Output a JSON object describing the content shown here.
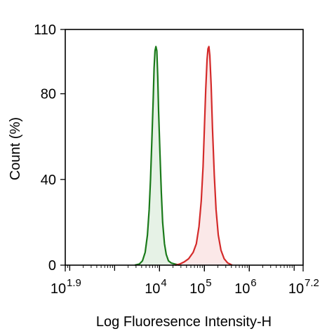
{
  "chart_data": {
    "type": "area",
    "xlabel": "Log Fluoresence Intensity-H",
    "ylabel": "Count  (%)",
    "x_scale": "log",
    "xlim": [
      1.9,
      7.2
    ],
    "ylim": [
      0,
      110
    ],
    "x_ticks": [
      {
        "base": "10",
        "exp": "1.9",
        "value": 1.9
      },
      {
        "base": "10",
        "exp": "4",
        "value": 4
      },
      {
        "base": "10",
        "exp": "5",
        "value": 5
      },
      {
        "base": "10",
        "exp": "6",
        "value": 6
      },
      {
        "base": "10",
        "exp": "7.2",
        "value": 7.2
      }
    ],
    "y_ticks": [
      "0",
      "40",
      "80",
      "110"
    ],
    "y_tick_values": [
      0,
      40,
      80,
      110
    ],
    "series": [
      {
        "color": "#1a7a1a",
        "fill": "#e6f2e6",
        "points": [
          [
            3.45,
            0
          ],
          [
            3.55,
            0.5
          ],
          [
            3.62,
            2
          ],
          [
            3.68,
            6
          ],
          [
            3.73,
            14
          ],
          [
            3.77,
            26
          ],
          [
            3.8,
            40
          ],
          [
            3.83,
            58
          ],
          [
            3.86,
            78
          ],
          [
            3.88,
            92
          ],
          [
            3.9,
            100
          ],
          [
            3.92,
            102
          ],
          [
            3.94,
            100
          ],
          [
            3.96,
            88
          ],
          [
            3.98,
            72
          ],
          [
            4.01,
            52
          ],
          [
            4.04,
            34
          ],
          [
            4.07,
            20
          ],
          [
            4.11,
            10
          ],
          [
            4.15,
            5
          ],
          [
            4.2,
            2
          ],
          [
            4.26,
            1
          ],
          [
            4.35,
            0.5
          ],
          [
            4.45,
            0
          ]
        ]
      },
      {
        "color": "#d42a2a",
        "fill": "#fbe8e8",
        "points": [
          [
            4.35,
            0
          ],
          [
            4.45,
            0.5
          ],
          [
            4.55,
            1.5
          ],
          [
            4.65,
            3
          ],
          [
            4.75,
            6
          ],
          [
            4.82,
            10
          ],
          [
            4.88,
            18
          ],
          [
            4.93,
            30
          ],
          [
            4.97,
            46
          ],
          [
            5.0,
            64
          ],
          [
            5.03,
            82
          ],
          [
            5.06,
            96
          ],
          [
            5.08,
            101
          ],
          [
            5.1,
            102
          ],
          [
            5.12,
            98
          ],
          [
            5.15,
            84
          ],
          [
            5.18,
            64
          ],
          [
            5.22,
            42
          ],
          [
            5.26,
            26
          ],
          [
            5.31,
            14
          ],
          [
            5.37,
            7
          ],
          [
            5.44,
            3
          ],
          [
            5.52,
            1
          ],
          [
            5.62,
            0
          ]
        ]
      }
    ]
  }
}
